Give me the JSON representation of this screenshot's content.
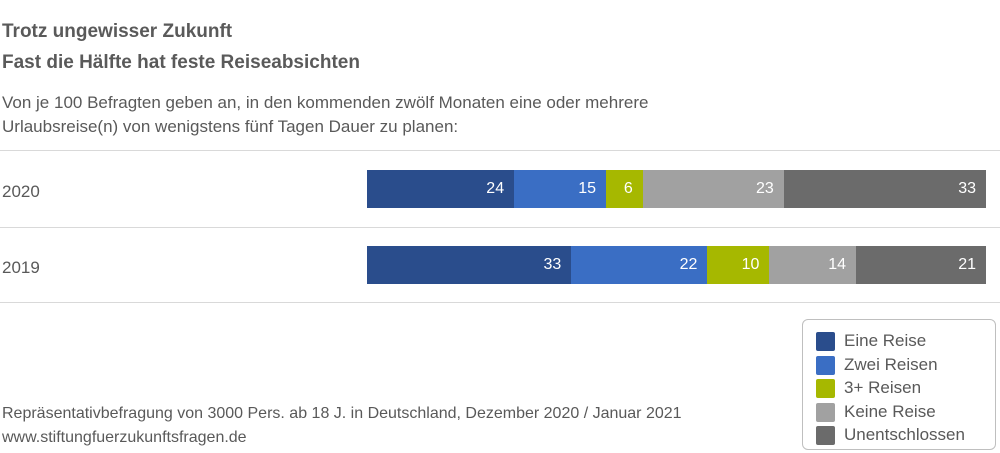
{
  "header": {
    "title_line1": "Trotz ungewisser Zukunft",
    "title_line2": "Fast die Hälfte hat feste Reiseabsichten",
    "subtitle_line1": "Von je 100 Befragten geben an, in den kommenden zwölf Monaten eine oder mehrere",
    "subtitle_line2": "Urlaubsreise(n) von wenigstens fünf Tagen Dauer zu planen:"
  },
  "footer": {
    "source": "Repräsentativbefragung von 3000 Pers. ab 18 J. in Deutschland, Dezember 2020 / Januar 2021",
    "url": "www.stiftungfuerzukunftsfragen.de"
  },
  "colors": {
    "Eine Reise": "#2a4d8c",
    "Zwei Reisen": "#3a6ec4",
    "3+ Reisen": "#a6b800",
    "Keine Reise": "#a1a1a1",
    "Unentschlossen": "#6b6b6b"
  },
  "chart_data": {
    "type": "bar",
    "orientation": "horizontal",
    "stacked": true,
    "categories": [
      "2020",
      "2019"
    ],
    "series": [
      {
        "name": "Eine Reise",
        "values": [
          24,
          33
        ]
      },
      {
        "name": "Zwei Reisen",
        "values": [
          15,
          22
        ]
      },
      {
        "name": "3+ Reisen",
        "values": [
          6,
          10
        ]
      },
      {
        "name": "Keine Reise",
        "values": [
          23,
          14
        ]
      },
      {
        "name": "Unentschlossen",
        "values": [
          33,
          21
        ]
      }
    ],
    "title": "Trotz ungewisser Zukunft",
    "subtitle": "Fast die Hälfte hat feste Reiseabsichten",
    "legend_position": "bottom-right",
    "grid": false
  }
}
